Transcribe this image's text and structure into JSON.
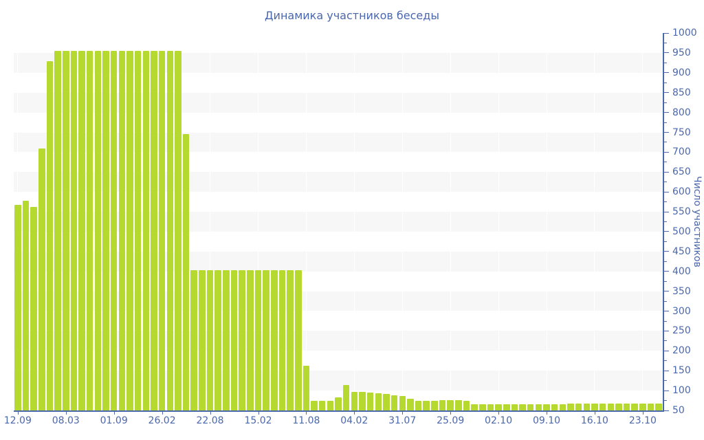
{
  "title": "Динамика участников беседы",
  "colors": {
    "bar": "#b6d930",
    "axis": "#4a67ab",
    "text": "#4a67ab",
    "stripe": "#f7f7f7",
    "grid_line": "#ffffff"
  },
  "chart_data": {
    "type": "bar",
    "title": "Динамика участников беседы",
    "xlabel": "",
    "ylabel": "Число участников",
    "ylim": [
      50,
      1000
    ],
    "y_axis_side": "right",
    "background": "alternating horizontal 50-unit bands (white / light gray)",
    "legend": "none",
    "y_tick_step": 50,
    "y_minor_tick_step": 25,
    "y_ticks": [
      50,
      100,
      150,
      200,
      250,
      300,
      350,
      400,
      450,
      500,
      550,
      600,
      650,
      700,
      750,
      800,
      850,
      900,
      950,
      1000
    ],
    "x_tick_labels": [
      "12.09",
      "08.03",
      "01.09",
      "26.02",
      "22.08",
      "15.02",
      "11.08",
      "04.02",
      "31.07",
      "25.09",
      "02.10",
      "09.10",
      "16.10",
      "23.10"
    ],
    "x_label_interval": 6,
    "values": [
      567,
      577,
      563,
      710,
      930,
      955,
      955,
      955,
      955,
      955,
      955,
      955,
      955,
      955,
      955,
      955,
      955,
      955,
      955,
      955,
      955,
      745,
      403,
      403,
      403,
      403,
      403,
      403,
      403,
      403,
      403,
      403,
      403,
      403,
      403,
      403,
      162,
      75,
      75,
      75,
      83,
      114,
      97,
      96,
      95,
      93,
      91,
      89,
      87,
      80,
      74,
      74,
      74,
      76,
      76,
      76,
      74,
      66,
      66,
      65,
      65,
      65,
      66,
      65,
      65,
      66,
      65,
      65,
      66,
      68,
      68,
      67,
      68,
      68,
      67,
      68,
      68,
      67,
      68,
      68,
      68
    ]
  }
}
